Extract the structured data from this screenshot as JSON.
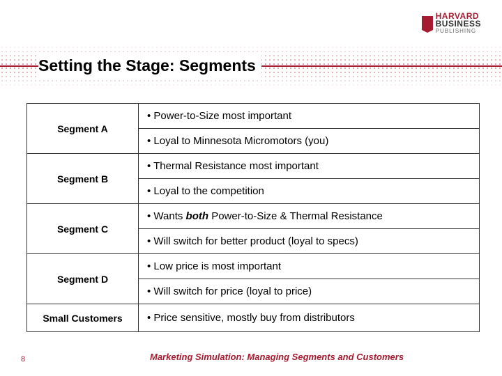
{
  "logo": {
    "line1": "HARVARD",
    "line2": "BUSINESS",
    "line3": "PUBLISHING"
  },
  "title": "Setting the Stage: Segments",
  "segments": [
    {
      "label": "Segment  A",
      "bullets": [
        "• Power-to-Size most important",
        "• Loyal to Minnesota Micromotors (you)"
      ]
    },
    {
      "label": "Segment B",
      "bullets": [
        "• Thermal Resistance most important",
        "• Loyal to the competition"
      ]
    },
    {
      "label": "Segment C",
      "bullets_html": [
        "• Wants <b><i>both</i></b> Power-to-Size & Thermal Resistance",
        "• Will switch for better product (loyal to specs)"
      ]
    },
    {
      "label": "Segment D",
      "bullets": [
        "• Low price is most important",
        "• Will switch for price (loyal to price)"
      ]
    },
    {
      "label": "Small Customers",
      "bullets": [
        "• Price sensitive, mostly buy from distributors"
      ]
    }
  ],
  "footer": "Marketing Simulation: Managing Segments and Customers",
  "page": "8",
  "colors": {
    "brand": "#a51c30",
    "text": "#000000",
    "border": "#333333"
  }
}
